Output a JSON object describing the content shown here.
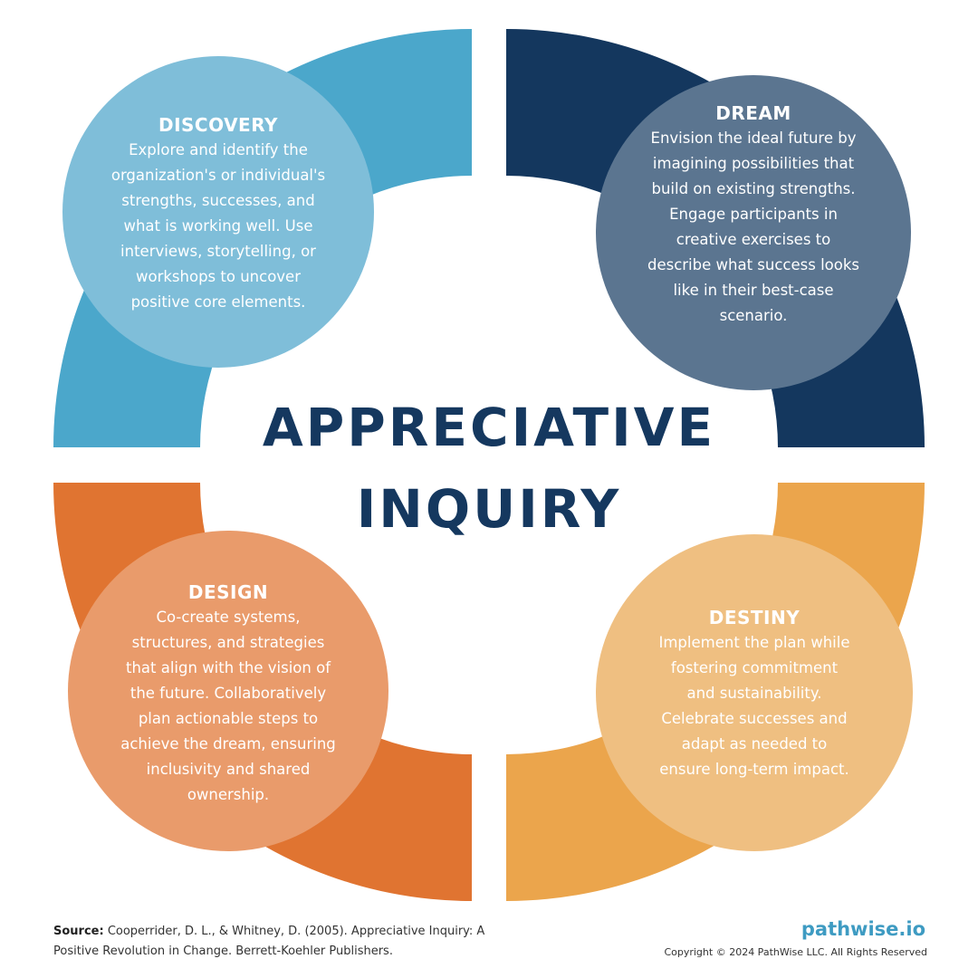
{
  "title": {
    "line1": "APPRECIATIVE",
    "line2": "INQUIRY"
  },
  "phases": [
    {
      "name": "DISCOVERY",
      "band_color": "#4BA7CB",
      "circle_color": "#7FBED9",
      "lines": [
        "Explore and identify the",
        "organization's or individual's",
        "strengths, successes, and",
        "what is working well. Use",
        "interviews, storytelling, or",
        "workshops to uncover",
        "positive core elements."
      ]
    },
    {
      "name": "DREAM",
      "band_color": "#14375E",
      "circle_color": "#5B7590",
      "lines": [
        "Envision the ideal future by",
        "imagining possibilities that",
        "build on existing strengths.",
        "Engage participants in",
        "creative exercises to",
        "describe what success looks",
        "like in their best-case",
        "scenario."
      ]
    },
    {
      "name": "DESIGN",
      "band_color": "#E07431",
      "circle_color": "#E99B6B",
      "lines": [
        "Co-create systems,",
        "structures, and strategies",
        "that align with the vision of",
        "the future. Collaboratively",
        "plan actionable steps to",
        "achieve the dream, ensuring",
        "inclusivity and shared",
        "ownership."
      ]
    },
    {
      "name": "DESTINY",
      "band_color": "#EBA54C",
      "circle_color": "#EFBF81",
      "lines": [
        "Implement the plan while",
        "fostering commitment",
        "and sustainability.",
        "Celebrate successes and",
        "adapt as needed to",
        "ensure long-term impact."
      ]
    }
  ],
  "footer": {
    "source_label": "Source:",
    "source_line1": " Cooperrider, D. L., & Whitney, D. (2005). Appreciative Inquiry: A",
    "source_line2": "Positive Revolution in Change. Berrett-Koehler Publishers.",
    "brand": "pathwise.io",
    "copyright": "Copyright © 2024 PathWise LLC. All Rights Reserved"
  }
}
